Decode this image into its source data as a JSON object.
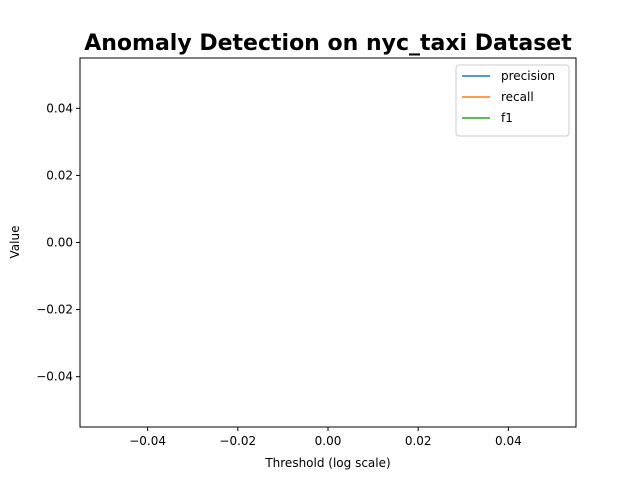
{
  "chart_data": {
    "type": "line",
    "title": "Anomaly Detection on nyc_taxi Dataset",
    "xlabel": "Threshold (log scale)",
    "ylabel": "Value",
    "xlim": [
      -0.055,
      0.055
    ],
    "ylim": [
      -0.055,
      0.055
    ],
    "x_ticks": [
      -0.04,
      -0.02,
      0.0,
      0.02,
      0.04
    ],
    "y_ticks": [
      -0.04,
      -0.02,
      0.0,
      0.02,
      0.04
    ],
    "x_tick_labels": [
      "−0.04",
      "−0.02",
      "0.00",
      "0.02",
      "0.04"
    ],
    "y_tick_labels": [
      "−0.04",
      "−0.02",
      "0.00",
      "0.02",
      "0.04"
    ],
    "grid": false,
    "legend_position": "top-right",
    "series": [
      {
        "name": "precision",
        "color": "#1f77b4",
        "x": [],
        "y": []
      },
      {
        "name": "recall",
        "color": "#ff7f0e",
        "x": [],
        "y": []
      },
      {
        "name": "f1",
        "color": "#2ca02c",
        "x": [],
        "y": []
      }
    ]
  }
}
